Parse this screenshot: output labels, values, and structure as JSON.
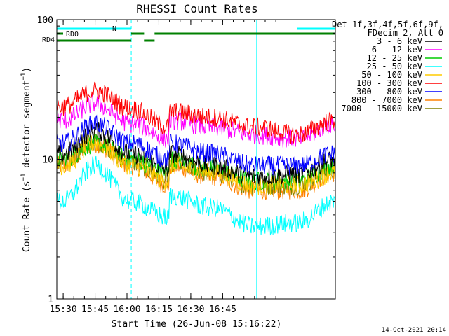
{
  "chart_data": {
    "type": "line",
    "title": "RHESSI Count Rates",
    "xlabel": "Start Time (26-Jun-08 15:16:22)",
    "ylabel": "Count Rate (s⁻¹ detector segment⁻¹)",
    "ylog": true,
    "ylim": [
      1,
      100
    ],
    "xlim_minutes": [
      15.27,
      16.98
    ],
    "x_ticks": [
      "15:30",
      "15:45",
      "16:00",
      "16:15",
      "16:30",
      "16:45"
    ],
    "y_ticks": [
      "1",
      "10",
      "100"
    ],
    "legend_header": [
      "Det 1f,3f,4f,5f,6f,9f,",
      "FDecim 2, Att 0"
    ],
    "legend_position": "right",
    "footer_date": "14-Oct-2021 20:14",
    "flag_labels": [
      "RD0",
      "RD4",
      "N"
    ],
    "flags": [
      {
        "label": "N",
        "color": "#00ffff",
        "segments": [
          [
            15.27,
            15.62
          ],
          [
            16.8,
            16.98
          ]
        ]
      },
      {
        "label": "RD0",
        "color": "#008000",
        "segments": [
          [
            15.62,
            16.08
          ],
          [
            16.13,
            16.98
          ]
        ]
      },
      {
        "label": "RD4",
        "color": "#008000",
        "segments": [
          [
            15.27,
            15.62
          ],
          [
            15.62,
            16.08
          ],
          [
            16.08,
            16.13
          ],
          [
            16.13,
            16.98
          ]
        ]
      }
    ],
    "vertical_markers": [
      {
        "x": 15.27,
        "style": "solid"
      },
      {
        "x": 15.62,
        "style": "dashed"
      },
      {
        "x": 16.61,
        "style": "solid"
      },
      {
        "x": 16.98,
        "style": "dashed"
      }
    ],
    "x_minutes_key": [
      15.3,
      15.45,
      15.62,
      15.8,
      16.0,
      16.2,
      16.4,
      16.6,
      16.8,
      16.98
    ],
    "series": [
      {
        "name": "3 - 6 keV",
        "color": "#000000",
        "values": [
          11,
          16,
          11,
          8.5,
          8.5,
          11,
          9,
          7.5,
          7.8,
          10
        ]
      },
      {
        "name": "6 - 12 keV",
        "color": "#ff00ff",
        "values": [
          19,
          25,
          18,
          14,
          15,
          19,
          17,
          15,
          14,
          18
        ]
      },
      {
        "name": "12 - 25 keV",
        "color": "#00cc00",
        "values": [
          10,
          13,
          10,
          8,
          8,
          10,
          8.5,
          7,
          7,
          9
        ]
      },
      {
        "name": "25 - 50 keV",
        "color": "#00ffff",
        "values": [
          5,
          9,
          5,
          3.8,
          4,
          5.5,
          4.5,
          3.3,
          3.5,
          5
        ]
      },
      {
        "name": "50 - 100 keV",
        "color": "#ffcc00",
        "values": [
          9,
          13,
          9,
          7,
          7,
          9,
          8,
          6.5,
          6.5,
          8
        ]
      },
      {
        "name": "100 - 300 keV",
        "color": "#ff0000",
        "values": [
          24,
          31,
          23,
          17,
          18,
          22,
          20,
          17,
          15,
          19
        ]
      },
      {
        "name": "300 - 800 keV",
        "color": "#0000ff",
        "values": [
          13,
          18,
          13,
          10,
          10,
          13,
          11,
          9,
          9,
          11
        ]
      },
      {
        "name": "800 - 7000 keV",
        "color": "#ff8000",
        "values": [
          9,
          13,
          9,
          6.5,
          7,
          9,
          7.5,
          6,
          6,
          8
        ]
      },
      {
        "name": "7000 - 15000 keV",
        "color": "#808000",
        "values": [
          9.5,
          13.5,
          9.5,
          7,
          7.3,
          9.5,
          8,
          6.5,
          6.5,
          8.5
        ]
      }
    ]
  }
}
